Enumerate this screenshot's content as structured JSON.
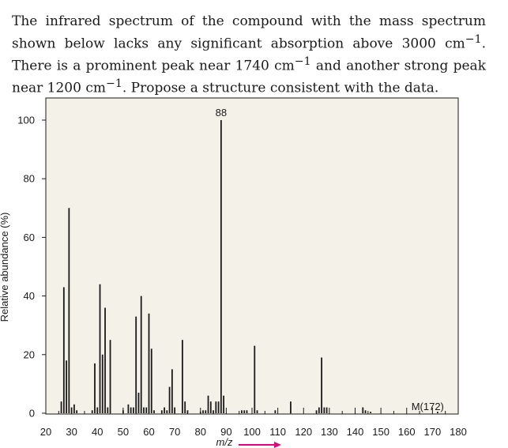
{
  "problem": {
    "text_part1": "The infrared spectrum of the compound with the mass spectrum shown below lacks any significant absorption above 3000 cm",
    "sup1": "−1",
    "text_part2": ". There is a prominent peak near 1740 cm",
    "sup2": "−1",
    "text_part3": " and another strong peak near 1200 cm",
    "sup3": "−1",
    "text_part4": ". Propose a structure consistent with the data."
  },
  "chart_data": {
    "type": "bar",
    "title": "",
    "xlabel": "m/z",
    "ylabel": "Relative abundance (%)",
    "xlim": [
      20,
      180
    ],
    "ylim": [
      0,
      100
    ],
    "x_ticks": [
      "20",
      "30",
      "40",
      "50",
      "60",
      "70",
      "80",
      "90",
      "100",
      "110",
      "120",
      "130",
      "140",
      "150",
      "160",
      "170",
      "180"
    ],
    "y_ticks": [
      "0",
      "20",
      "40",
      "60",
      "80",
      "100"
    ],
    "grid": false,
    "annotations": [
      {
        "text": "88",
        "x": 88,
        "y": 100
      },
      {
        "text": "M(172)",
        "x": 172,
        "y": 0
      }
    ],
    "peaks": [
      {
        "mz": 26,
        "value": 4
      },
      {
        "mz": 27,
        "value": 43
      },
      {
        "mz": 28,
        "value": 18
      },
      {
        "mz": 29,
        "value": 70
      },
      {
        "mz": 30,
        "value": 2
      },
      {
        "mz": 31,
        "value": 3
      },
      {
        "mz": 32,
        "value": 1
      },
      {
        "mz": 38,
        "value": 1
      },
      {
        "mz": 39,
        "value": 17
      },
      {
        "mz": 40,
        "value": 2
      },
      {
        "mz": 41,
        "value": 44
      },
      {
        "mz": 42,
        "value": 20
      },
      {
        "mz": 43,
        "value": 36
      },
      {
        "mz": 44,
        "value": 2
      },
      {
        "mz": 45,
        "value": 25
      },
      {
        "mz": 50,
        "value": 1
      },
      {
        "mz": 52,
        "value": 3
      },
      {
        "mz": 53,
        "value": 2
      },
      {
        "mz": 54,
        "value": 2
      },
      {
        "mz": 55,
        "value": 33
      },
      {
        "mz": 56,
        "value": 7
      },
      {
        "mz": 57,
        "value": 40
      },
      {
        "mz": 58,
        "value": 2
      },
      {
        "mz": 59,
        "value": 2
      },
      {
        "mz": 60,
        "value": 34
      },
      {
        "mz": 61,
        "value": 22
      },
      {
        "mz": 62,
        "value": 1
      },
      {
        "mz": 65,
        "value": 1
      },
      {
        "mz": 66,
        "value": 2
      },
      {
        "mz": 67,
        "value": 1
      },
      {
        "mz": 68,
        "value": 9
      },
      {
        "mz": 69,
        "value": 15
      },
      {
        "mz": 70,
        "value": 2
      },
      {
        "mz": 73,
        "value": 25
      },
      {
        "mz": 74,
        "value": 4
      },
      {
        "mz": 75,
        "value": 1
      },
      {
        "mz": 80,
        "value": 0.5
      },
      {
        "mz": 81,
        "value": 1
      },
      {
        "mz": 82,
        "value": 1
      },
      {
        "mz": 83,
        "value": 6
      },
      {
        "mz": 84,
        "value": 4
      },
      {
        "mz": 85,
        "value": 1
      },
      {
        "mz": 86,
        "value": 4
      },
      {
        "mz": 87,
        "value": 4
      },
      {
        "mz": 88,
        "value": 100
      },
      {
        "mz": 89,
        "value": 6
      },
      {
        "mz": 96,
        "value": 1
      },
      {
        "mz": 97,
        "value": 1
      },
      {
        "mz": 98,
        "value": 1
      },
      {
        "mz": 101,
        "value": 23
      },
      {
        "mz": 102,
        "value": 1
      },
      {
        "mz": 109,
        "value": 1
      },
      {
        "mz": 115,
        "value": 4
      },
      {
        "mz": 125,
        "value": 1
      },
      {
        "mz": 126,
        "value": 2
      },
      {
        "mz": 127,
        "value": 19
      },
      {
        "mz": 128,
        "value": 2
      },
      {
        "mz": 129,
        "value": 2
      },
      {
        "mz": 143,
        "value": 2
      },
      {
        "mz": 144,
        "value": 1
      },
      {
        "mz": 146,
        "value": 0.5
      },
      {
        "mz": 172,
        "value": 0.5
      }
    ]
  },
  "colors": {
    "plot_bg": "#f4f1e9",
    "bars": "#1a1a1a",
    "text": "#1a1a1a",
    "arrow": "#e6007e"
  }
}
